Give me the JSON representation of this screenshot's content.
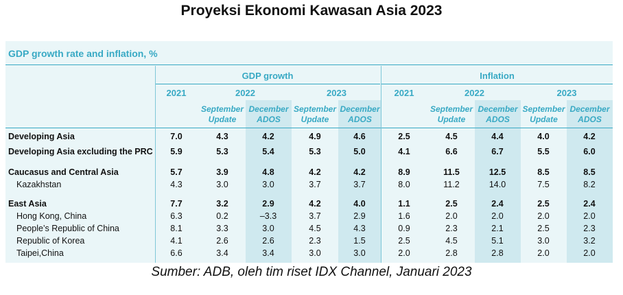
{
  "title": "Proyeksi Ekonomi Kawasan Asia 2023",
  "panel_title": "GDP growth rate and inflation, %",
  "groups": {
    "gdp": "GDP growth",
    "inflation": "Inflation"
  },
  "years": {
    "y2021": "2021",
    "y2022": "2022",
    "y2023": "2023"
  },
  "subheads": {
    "sep_line1": "September",
    "sep_line2": "Update",
    "dec_line1": "December",
    "dec_line2": "ADOS"
  },
  "rows": [
    {
      "label": "Developing Asia",
      "bold": true,
      "values": [
        "7.0",
        "4.3",
        "4.2",
        "4.9",
        "4.6",
        "2.5",
        "4.5",
        "4.4",
        "4.0",
        "4.2"
      ]
    },
    {
      "label": "Developing Asia excluding the PRC",
      "bold": true,
      "values": [
        "5.9",
        "5.3",
        "5.4",
        "5.3",
        "5.0",
        "4.1",
        "6.6",
        "6.7",
        "5.5",
        "6.0"
      ]
    },
    {
      "label": "Caucasus and Central Asia",
      "bold": true,
      "values": [
        "5.7",
        "3.9",
        "4.8",
        "4.2",
        "4.2",
        "8.9",
        "11.5",
        "12.5",
        "8.5",
        "8.5"
      ]
    },
    {
      "label": "Kazakhstan",
      "bold": false,
      "values": [
        "4.3",
        "3.0",
        "3.0",
        "3.7",
        "3.7",
        "8.0",
        "11.2",
        "14.0",
        "7.5",
        "8.2"
      ]
    },
    {
      "label": "East Asia",
      "bold": true,
      "values": [
        "7.7",
        "3.2",
        "2.9",
        "4.2",
        "4.0",
        "1.1",
        "2.5",
        "2.4",
        "2.5",
        "2.4"
      ]
    },
    {
      "label": "Hong Kong, China",
      "bold": false,
      "values": [
        "6.3",
        "0.2",
        "–3.3",
        "3.7",
        "2.9",
        "1.6",
        "2.0",
        "2.0",
        "2.0",
        "2.0"
      ]
    },
    {
      "label": "People’s Republic of China",
      "bold": false,
      "values": [
        "8.1",
        "3.3",
        "3.0",
        "4.5",
        "4.3",
        "0.9",
        "2.3",
        "2.1",
        "2.5",
        "2.3"
      ]
    },
    {
      "label": "Republic of Korea",
      "bold": false,
      "values": [
        "4.1",
        "2.6",
        "2.6",
        "2.3",
        "1.5",
        "2.5",
        "4.5",
        "5.1",
        "3.0",
        "3.2"
      ]
    },
    {
      "label": "Taipei,China",
      "bold": false,
      "values": [
        "6.6",
        "3.4",
        "3.4",
        "3.0",
        "3.0",
        "2.0",
        "2.8",
        "2.8",
        "2.0",
        "2.0"
      ]
    }
  ],
  "source": "Sumber: ADB, oleh tim riset IDX Channel, Januari 2023"
}
